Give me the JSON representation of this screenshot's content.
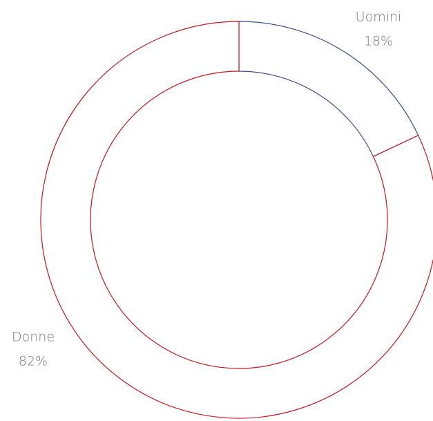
{
  "chart_data": {
    "type": "pie",
    "donut": true,
    "categories": [
      "Uomini",
      "Donne"
    ],
    "values": [
      18,
      82
    ],
    "value_labels": [
      "18%",
      "82%"
    ],
    "colors": [
      "#3a4f8c",
      "#c8151e"
    ]
  }
}
